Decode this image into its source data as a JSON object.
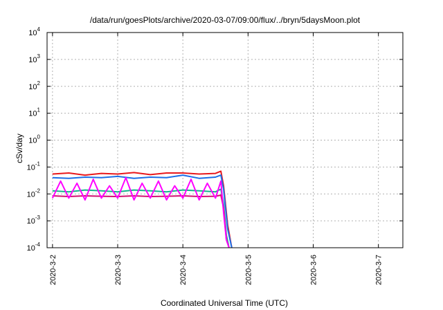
{
  "chart_data": {
    "type": "line",
    "title": "/data/run/goesPlots/archive/2020-03-07/09:00/flux/../bryn/5daysMoon.plot",
    "xlabel": "Coordinated Universal Time (UTC)",
    "ylabel": "cSv/day",
    "y_scale": "log",
    "ylim": [
      0.0001,
      10000
    ],
    "y_ticks": [
      {
        "value": 0.0001,
        "base": "10",
        "exp": "-4"
      },
      {
        "value": 0.001,
        "base": "10",
        "exp": "-3"
      },
      {
        "value": 0.01,
        "base": "10",
        "exp": "-2"
      },
      {
        "value": 0.1,
        "base": "10",
        "exp": "-1"
      },
      {
        "value": 1,
        "base": "10",
        "exp": "0"
      },
      {
        "value": 10,
        "base": "10",
        "exp": "1"
      },
      {
        "value": 100,
        "base": "10",
        "exp": "2"
      },
      {
        "value": 1000,
        "base": "10",
        "exp": "3"
      },
      {
        "value": 10000,
        "base": "10",
        "exp": "4"
      }
    ],
    "x_ticks": [
      "2020-3-2",
      "2020-3-3",
      "2020-3-4",
      "2020-3-5",
      "2020-3-6",
      "2020-3-7"
    ],
    "xlim": [
      "2020-03-01 22:00",
      "2020-03-07 09:00"
    ],
    "grid": true,
    "series": [
      {
        "color": "#e8181c",
        "x": [
          "2020-03-02 00:00",
          "2020-03-02 06:00",
          "2020-03-02 12:00",
          "2020-03-02 18:00",
          "2020-03-03 00:00",
          "2020-03-03 06:00",
          "2020-03-03 12:00",
          "2020-03-03 18:00",
          "2020-03-04 00:00",
          "2020-03-04 06:00",
          "2020-03-04 12:00",
          "2020-03-04 14:00",
          "2020-03-04 15:00",
          "2020-03-04 16:30",
          "2020-03-04 18:00"
        ],
        "y": [
          0.055,
          0.06,
          0.05,
          0.058,
          0.055,
          0.062,
          0.052,
          0.06,
          0.06,
          0.055,
          0.058,
          0.07,
          0.02,
          0.0007,
          0.0001
        ]
      },
      {
        "color": "#1c6fe8",
        "x": [
          "2020-03-02 00:00",
          "2020-03-02 06:00",
          "2020-03-02 12:00",
          "2020-03-02 18:00",
          "2020-03-03 00:00",
          "2020-03-03 06:00",
          "2020-03-03 12:00",
          "2020-03-03 18:00",
          "2020-03-04 00:00",
          "2020-03-04 06:00",
          "2020-03-04 12:00",
          "2020-03-04 14:00",
          "2020-03-04 15:00",
          "2020-03-04 16:30",
          "2020-03-04 18:00"
        ],
        "y": [
          0.04,
          0.038,
          0.042,
          0.04,
          0.045,
          0.038,
          0.042,
          0.04,
          0.05,
          0.038,
          0.042,
          0.05,
          0.015,
          0.0005,
          0.0001
        ]
      },
      {
        "color": "#12b58a",
        "x": [
          "2020-03-02 00:00",
          "2020-03-02 06:00",
          "2020-03-02 12:00",
          "2020-03-02 18:00",
          "2020-03-03 00:00",
          "2020-03-03 06:00",
          "2020-03-03 12:00",
          "2020-03-03 18:00",
          "2020-03-04 00:00",
          "2020-03-04 06:00",
          "2020-03-04 12:00",
          "2020-03-04 14:00",
          "2020-03-04 15:00",
          "2020-03-04 16:00",
          "2020-03-04 17:00"
        ],
        "y": [
          0.013,
          0.012,
          0.014,
          0.013,
          0.012,
          0.014,
          0.013,
          0.012,
          0.014,
          0.013,
          0.012,
          0.015,
          0.004,
          0.0003,
          0.0001
        ]
      },
      {
        "color": "#d01070",
        "x": [
          "2020-03-02 00:00",
          "2020-03-02 06:00",
          "2020-03-02 12:00",
          "2020-03-02 18:00",
          "2020-03-03 00:00",
          "2020-03-03 06:00",
          "2020-03-03 12:00",
          "2020-03-03 18:00",
          "2020-03-04 00:00",
          "2020-03-04 06:00",
          "2020-03-04 12:00",
          "2020-03-04 14:00",
          "2020-03-04 15:00",
          "2020-03-04 16:00",
          "2020-03-04 17:00"
        ],
        "y": [
          0.0085,
          0.008,
          0.0085,
          0.0082,
          0.008,
          0.0085,
          0.008,
          0.0082,
          0.0085,
          0.008,
          0.0082,
          0.009,
          0.003,
          0.0002,
          0.0001
        ]
      },
      {
        "color": "#ff00ff",
        "x": [
          "2020-03-02 00:00",
          "2020-03-02 03:00",
          "2020-03-02 06:00",
          "2020-03-02 09:00",
          "2020-03-02 12:00",
          "2020-03-02 15:00",
          "2020-03-02 18:00",
          "2020-03-02 21:00",
          "2020-03-03 00:00",
          "2020-03-03 03:00",
          "2020-03-03 06:00",
          "2020-03-03 09:00",
          "2020-03-03 12:00",
          "2020-03-03 15:00",
          "2020-03-03 18:00",
          "2020-03-03 21:00",
          "2020-03-04 00:00",
          "2020-03-04 03:00",
          "2020-03-04 06:00",
          "2020-03-04 09:00",
          "2020-03-04 12:00",
          "2020-03-04 14:00",
          "2020-03-04 15:00",
          "2020-03-04 16:00",
          "2020-03-04 17:00"
        ],
        "y": [
          0.007,
          0.03,
          0.007,
          0.025,
          0.006,
          0.035,
          0.007,
          0.02,
          0.007,
          0.04,
          0.006,
          0.025,
          0.007,
          0.03,
          0.006,
          0.02,
          0.007,
          0.035,
          0.006,
          0.025,
          0.007,
          0.03,
          0.002,
          0.0002,
          0.0001
        ]
      }
    ]
  }
}
